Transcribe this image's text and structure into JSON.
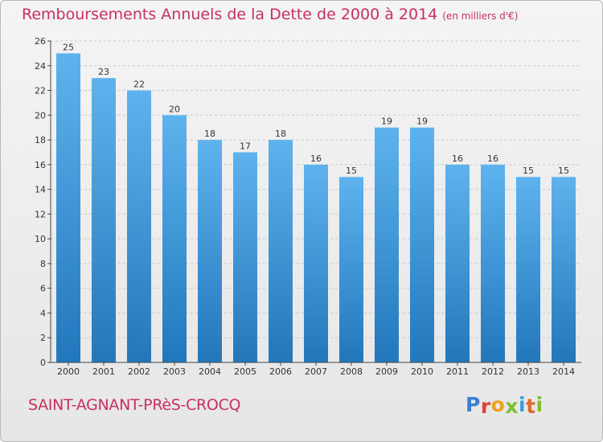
{
  "header": {
    "title": "Remboursements Annuels de la Dette de 2000 à 2014",
    "unit": "(en milliers d'€)"
  },
  "footer": {
    "commune": "SAINT-AGNANT-PRèS-CROCQ",
    "logo_letters": [
      "P",
      "r",
      "o",
      "x",
      "i",
      "t",
      "i"
    ],
    "logo_colors": [
      "#3a7fd0",
      "#e0403a",
      "#f0a020",
      "#7cc031",
      "#3a9ed8",
      "#e06a2a",
      "#7cc031"
    ]
  },
  "colors": {
    "title": "#c8305e",
    "bar_light": "#5eb3ee",
    "bar_dark": "#2277bb",
    "grid": "#c8c8c8",
    "axis": "#444444"
  },
  "chart_data": {
    "type": "bar",
    "title": "Remboursements Annuels de la Dette de 2000 à 2014",
    "xlabel": "",
    "ylabel": "",
    "categories": [
      "2000",
      "2001",
      "2002",
      "2003",
      "2004",
      "2005",
      "2006",
      "2007",
      "2008",
      "2009",
      "2010",
      "2011",
      "2012",
      "2013",
      "2014"
    ],
    "values": [
      25,
      23,
      22,
      20,
      18,
      17,
      18,
      16,
      15,
      19,
      19,
      16,
      16,
      15,
      15
    ],
    "ylim": [
      0,
      26
    ],
    "yticks": [
      0,
      2,
      4,
      6,
      8,
      10,
      12,
      14,
      16,
      18,
      20,
      22,
      24,
      26
    ],
    "grid": true,
    "data_labels": true
  }
}
